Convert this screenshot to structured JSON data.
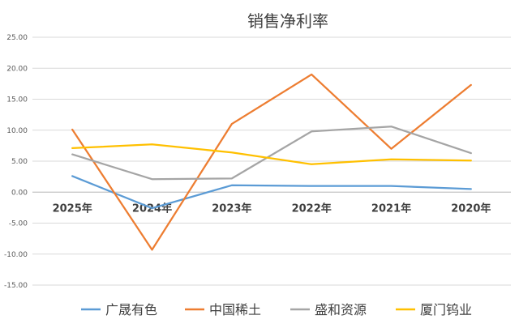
{
  "chart_data": {
    "type": "line",
    "title": "销售净利率",
    "xlabel": "",
    "ylabel": "",
    "categories": [
      "2025年",
      "2024年",
      "2023年",
      "2022年",
      "2021年",
      "2020年"
    ],
    "ylim": [
      -15,
      25
    ],
    "yticks": [
      "25.00",
      "20.00",
      "15.00",
      "10.00",
      "5.00",
      "0.00",
      "-5.00",
      "-10.00",
      "-15.00"
    ],
    "grid": true,
    "legend": "bottom",
    "series": [
      {
        "name": "广晟有色",
        "color": "#5B9BD5",
        "values": [
          2.6,
          -2.6,
          1.1,
          1.0,
          1.0,
          0.5
        ]
      },
      {
        "name": "中国稀土",
        "color": "#ED7D31",
        "values": [
          10.1,
          -9.3,
          11.0,
          19.0,
          7.0,
          17.3
        ]
      },
      {
        "name": "盛和资源",
        "color": "#A5A5A5",
        "values": [
          6.1,
          2.1,
          2.2,
          9.8,
          10.6,
          6.3
        ]
      },
      {
        "name": "厦门钨业",
        "color": "#FFC000",
        "values": [
          7.1,
          7.7,
          6.4,
          4.5,
          5.3,
          5.1
        ]
      }
    ]
  }
}
